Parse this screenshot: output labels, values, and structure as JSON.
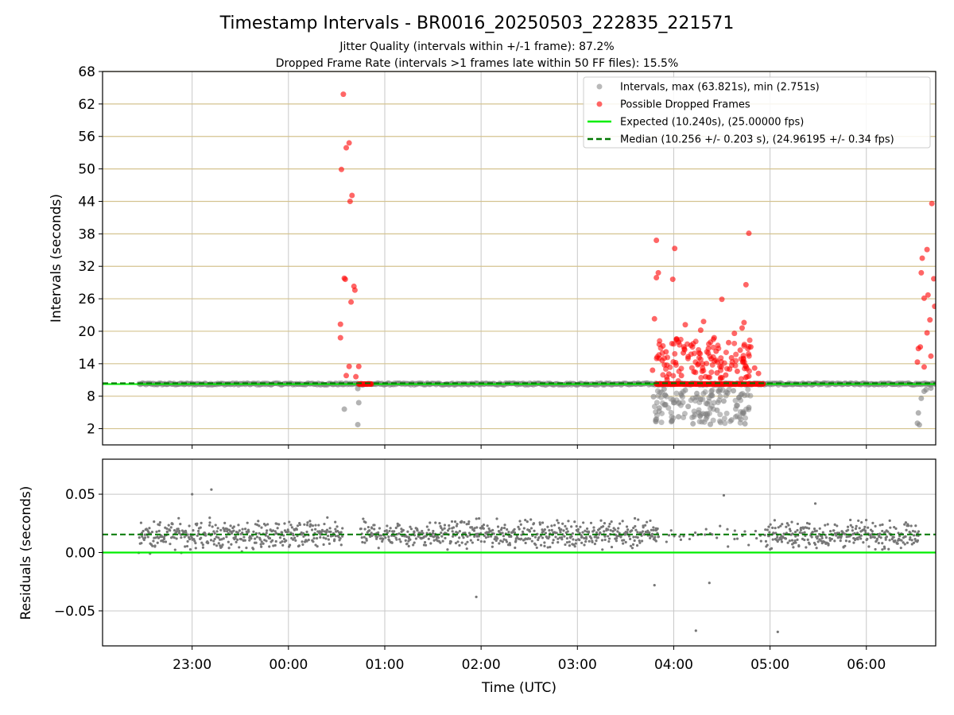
{
  "figure": {
    "title": "Timestamp Intervals - BR0016_20250503_222835_221571",
    "subtitle_1": "Jitter Quality (intervals within +/-1 frame): 87.2%",
    "subtitle_2": "Dropped Frame Rate (intervals >1 frames late within 50 FF files): 15.5%",
    "xlabel": "Time (UTC)"
  },
  "chart_data": [
    {
      "type": "scatter",
      "panel": "top",
      "ylabel": "Intervals (seconds)",
      "ylim": [
        -1,
        68
      ],
      "yticks": [
        2,
        8,
        14,
        20,
        26,
        32,
        38,
        44,
        50,
        56,
        62,
        68
      ],
      "xlim_hours": [
        -1.93,
        6.72
      ],
      "xticks": [
        {
          "hour": -1,
          "label": "23:00"
        },
        {
          "hour": 0,
          "label": "00:00"
        },
        {
          "hour": 1,
          "label": "01:00"
        },
        {
          "hour": 2,
          "label": "02:00"
        },
        {
          "hour": 3,
          "label": "03:00"
        },
        {
          "hour": 4,
          "label": "04:00"
        },
        {
          "hour": 5,
          "label": "05:00"
        },
        {
          "hour": 6,
          "label": "06:00"
        }
      ],
      "grid": "horizontal lines at y ticks (tan), vertical lines at x ticks (grey)",
      "legend_position": "top-right",
      "legend": [
        {
          "label": "Intervals, max (63.821s), min (2.751s)",
          "kind": "marker",
          "color": "#808080"
        },
        {
          "label": "Possible Dropped Frames",
          "kind": "marker",
          "color": "#ff0000"
        },
        {
          "label": "Expected (10.240s), (25.00000 fps)",
          "kind": "line",
          "color": "#00ee00"
        },
        {
          "label": "Median (10.256 +/- 0.203 s), (24.96195 +/- 0.34 fps)",
          "kind": "dashed",
          "color": "#007700"
        }
      ],
      "expected_value": 10.24,
      "median_value": 10.256,
      "baseline_series": {
        "name": "Intervals",
        "x_range_hours": [
          -1.55,
          6.72
        ],
        "y": 10.25
      },
      "dropped_points": [
        {
          "x": 0.57,
          "y": 63.8
        },
        {
          "x": 0.63,
          "y": 54.8
        },
        {
          "x": 0.6,
          "y": 53.9
        },
        {
          "x": 0.55,
          "y": 49.9
        },
        {
          "x": 0.66,
          "y": 45.1
        },
        {
          "x": 0.64,
          "y": 44.0
        },
        {
          "x": 0.58,
          "y": 29.8
        },
        {
          "x": 0.59,
          "y": 29.6
        },
        {
          "x": 0.68,
          "y": 28.3
        },
        {
          "x": 0.69,
          "y": 27.6
        },
        {
          "x": 0.65,
          "y": 25.4
        },
        {
          "x": 0.54,
          "y": 21.3
        },
        {
          "x": 0.54,
          "y": 18.8
        },
        {
          "x": 0.63,
          "y": 13.5
        },
        {
          "x": 0.73,
          "y": 13.5
        },
        {
          "x": 0.6,
          "y": 11.8
        },
        {
          "x": 0.7,
          "y": 11.6
        },
        {
          "x": 3.82,
          "y": 36.8
        },
        {
          "x": 3.84,
          "y": 30.8
        },
        {
          "x": 3.82,
          "y": 29.9
        },
        {
          "x": 4.01,
          "y": 35.3
        },
        {
          "x": 3.99,
          "y": 29.6
        },
        {
          "x": 4.5,
          "y": 25.9
        },
        {
          "x": 4.78,
          "y": 38.1
        },
        {
          "x": 4.75,
          "y": 28.6
        },
        {
          "x": 3.8,
          "y": 22.3
        },
        {
          "x": 4.12,
          "y": 21.2
        },
        {
          "x": 4.31,
          "y": 21.8
        },
        {
          "x": 4.73,
          "y": 21.6
        },
        {
          "x": 4.05,
          "y": 18.0
        },
        {
          "x": 4.28,
          "y": 20.2
        },
        {
          "x": 4.42,
          "y": 18.8
        },
        {
          "x": 4.63,
          "y": 19.6
        },
        {
          "x": 4.71,
          "y": 20.6
        },
        {
          "x": 3.92,
          "y": 16.2
        },
        {
          "x": 4.18,
          "y": 17.4
        },
        {
          "x": 4.36,
          "y": 16.8
        },
        {
          "x": 4.57,
          "y": 17.9
        },
        {
          "x": 4.69,
          "y": 16.5
        },
        {
          "x": 4.8,
          "y": 17.1
        },
        {
          "x": 3.88,
          "y": 14.6
        },
        {
          "x": 4.02,
          "y": 14.2
        },
        {
          "x": 4.15,
          "y": 15.3
        },
        {
          "x": 4.25,
          "y": 13.8
        },
        {
          "x": 4.39,
          "y": 14.9
        },
        {
          "x": 4.48,
          "y": 13.5
        },
        {
          "x": 4.6,
          "y": 15.1
        },
        {
          "x": 4.72,
          "y": 14.4
        },
        {
          "x": 4.84,
          "y": 13.2
        },
        {
          "x": 3.78,
          "y": 12.8
        },
        {
          "x": 3.95,
          "y": 12.1
        },
        {
          "x": 4.08,
          "y": 11.8
        },
        {
          "x": 4.21,
          "y": 12.5
        },
        {
          "x": 4.33,
          "y": 11.6
        },
        {
          "x": 4.45,
          "y": 12.3
        },
        {
          "x": 4.54,
          "y": 11.9
        },
        {
          "x": 4.66,
          "y": 12.6
        },
        {
          "x": 4.78,
          "y": 11.7
        },
        {
          "x": 4.88,
          "y": 12.2
        },
        {
          "x": 4.1,
          "y": 16.0
        },
        {
          "x": 4.44,
          "y": 16.3
        },
        {
          "x": 4.58,
          "y": 13.0
        },
        {
          "x": 4.3,
          "y": 13.2
        },
        {
          "x": 6.68,
          "y": 43.6
        },
        {
          "x": 6.63,
          "y": 35.1
        },
        {
          "x": 6.58,
          "y": 33.5
        },
        {
          "x": 6.57,
          "y": 30.8
        },
        {
          "x": 6.7,
          "y": 29.7
        },
        {
          "x": 6.64,
          "y": 26.7
        },
        {
          "x": 6.6,
          "y": 26.1
        },
        {
          "x": 6.71,
          "y": 24.6
        },
        {
          "x": 6.66,
          "y": 22.1
        },
        {
          "x": 6.63,
          "y": 19.7
        },
        {
          "x": 6.56,
          "y": 17.1
        },
        {
          "x": 6.54,
          "y": 16.8
        },
        {
          "x": 6.67,
          "y": 15.4
        },
        {
          "x": 6.53,
          "y": 14.3
        },
        {
          "x": 6.6,
          "y": 13.4
        }
      ],
      "dropped_runs": [
        {
          "x_from": 0.73,
          "x_to": 0.87,
          "y": 10.25
        },
        {
          "x_from": 3.82,
          "x_to": 4.93,
          "y": 10.25
        }
      ],
      "low_points": [
        {
          "x": 0.58,
          "y": 5.6
        },
        {
          "x": 0.73,
          "y": 6.8
        },
        {
          "x": 0.72,
          "y": 2.75
        },
        {
          "x": 0.72,
          "y": 9.4
        },
        {
          "x": 3.79,
          "y": 7.9
        },
        {
          "x": 3.85,
          "y": 5.8
        },
        {
          "x": 3.98,
          "y": 3.4
        },
        {
          "x": 4.05,
          "y": 4.2
        },
        {
          "x": 4.15,
          "y": 6.1
        },
        {
          "x": 4.2,
          "y": 2.9
        },
        {
          "x": 4.28,
          "y": 7.4
        },
        {
          "x": 4.33,
          "y": 4.7
        },
        {
          "x": 4.38,
          "y": 2.8
        },
        {
          "x": 4.45,
          "y": 5.4
        },
        {
          "x": 4.52,
          "y": 7.1
        },
        {
          "x": 4.6,
          "y": 3.6
        },
        {
          "x": 4.66,
          "y": 6.3
        },
        {
          "x": 4.72,
          "y": 4.9
        },
        {
          "x": 4.74,
          "y": 2.9
        },
        {
          "x": 4.78,
          "y": 5.9
        },
        {
          "x": 4.08,
          "y": 8.2
        },
        {
          "x": 4.24,
          "y": 8.5
        },
        {
          "x": 4.4,
          "y": 8.1
        },
        {
          "x": 4.56,
          "y": 8.6
        },
        {
          "x": 4.7,
          "y": 8.3
        },
        {
          "x": 4.12,
          "y": 9.1
        },
        {
          "x": 4.48,
          "y": 9.2
        },
        {
          "x": 4.62,
          "y": 9.0
        },
        {
          "x": 3.9,
          "y": 9.3
        },
        {
          "x": 4.0,
          "y": 6.8
        },
        {
          "x": 4.35,
          "y": 6.6
        },
        {
          "x": 4.68,
          "y": 7.8
        },
        {
          "x": 6.55,
          "y": 2.7
        },
        {
          "x": 6.54,
          "y": 4.9
        },
        {
          "x": 6.57,
          "y": 7.6
        },
        {
          "x": 6.62,
          "y": 9.2
        },
        {
          "x": 6.67,
          "y": 9.5
        },
        {
          "x": 6.6,
          "y": 8.9
        },
        {
          "x": 6.53,
          "y": 3.0
        }
      ]
    },
    {
      "type": "scatter",
      "panel": "bottom",
      "ylabel": "Residuals (seconds)",
      "ylim": [
        -0.08,
        0.08
      ],
      "yticks": [
        {
          "value": -0.05,
          "label": "−0.05"
        },
        {
          "value": 0.0,
          "label": "0.00"
        },
        {
          "value": 0.05,
          "label": "0.05"
        }
      ],
      "grid": "both",
      "expected_line": 0.0,
      "median_line": 0.0155,
      "series": [
        {
          "name": "Residuals",
          "color": "#777777",
          "segments": [
            {
              "x_from": -1.55,
              "x_to": 0.57,
              "center": 0.015,
              "spread": 0.011,
              "step": 0.011
            },
            {
              "x_from": 0.75,
              "x_to": 3.85,
              "center": 0.016,
              "spread": 0.01,
              "step": 0.011
            },
            {
              "x_from": 3.85,
              "x_to": 4.95,
              "center": 0.015,
              "spread": 0.008,
              "step": 0.07
            },
            {
              "x_from": 4.95,
              "x_to": 6.55,
              "center": 0.015,
              "spread": 0.01,
              "step": 0.011
            }
          ]
        },
        {
          "name": "Residual outliers",
          "color": "#777777",
          "points": [
            {
              "x": -1.0,
              "y": 0.05
            },
            {
              "x": -0.8,
              "y": 0.054
            },
            {
              "x": 1.95,
              "y": -0.038
            },
            {
              "x": 4.23,
              "y": -0.067
            },
            {
              "x": 5.08,
              "y": -0.068
            },
            {
              "x": 4.37,
              "y": -0.026
            },
            {
              "x": 3.8,
              "y": -0.028
            },
            {
              "x": 4.52,
              "y": 0.049
            },
            {
              "x": 5.47,
              "y": 0.042
            }
          ]
        }
      ]
    }
  ]
}
